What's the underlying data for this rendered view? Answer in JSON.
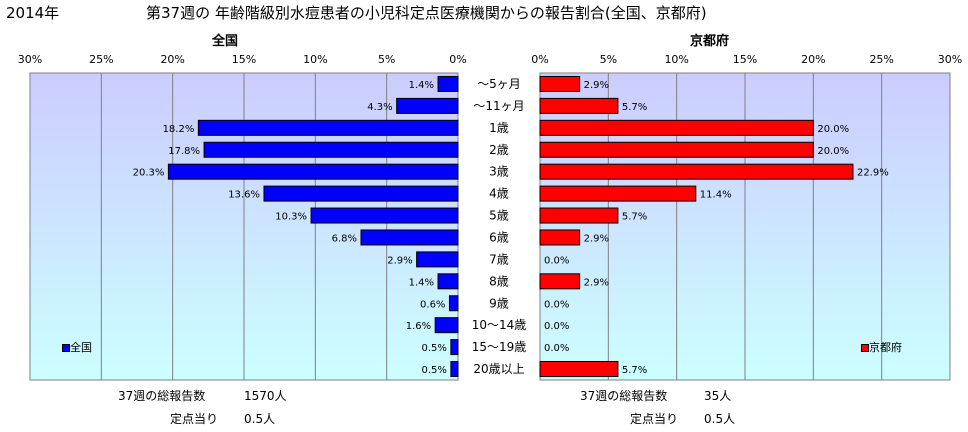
{
  "header": {
    "year": "2014年",
    "title": "第37週の 年齢階級別水痘患者の小児科定点医療機関からの報告割合(全国、京都府)"
  },
  "colors": {
    "left_bar": "#0000ff",
    "right_bar": "#ff0000",
    "plot_bg_top": "#ccccff",
    "plot_bg_bottom": "#ccffff"
  },
  "chart_data": [
    {
      "type": "bar",
      "orientation": "horizontal",
      "subtitle": "全国",
      "legend": "全国",
      "legend_position": "bottom-left",
      "xlim": [
        0,
        30
      ],
      "x_direction": "reversed",
      "ticks": [
        "30%",
        "25%",
        "20%",
        "15%",
        "10%",
        "5%",
        "0%"
      ],
      "categories": [
        "～5ヶ月",
        "～11ヶ月",
        "1歳",
        "2歳",
        "3歳",
        "4歳",
        "5歳",
        "6歳",
        "7歳",
        "8歳",
        "9歳",
        "10～14歳",
        "15～19歳",
        "20歳以上"
      ],
      "values": [
        1.4,
        4.3,
        18.2,
        17.8,
        20.3,
        13.6,
        10.3,
        6.8,
        2.9,
        1.4,
        0.6,
        1.6,
        0.5,
        0.5
      ],
      "labels": [
        "1.4%",
        "4.3%",
        "18.2%",
        "17.8%",
        "20.3%",
        "13.6%",
        "10.3%",
        "6.8%",
        "2.9%",
        "1.4%",
        "0.6%",
        "1.6%",
        "0.5%",
        "0.5%"
      ],
      "grid": true
    },
    {
      "type": "bar",
      "orientation": "horizontal",
      "subtitle": "京都府",
      "legend": "京都府",
      "legend_position": "bottom-right",
      "xlim": [
        0,
        30
      ],
      "ticks": [
        "0%",
        "5%",
        "10%",
        "15%",
        "20%",
        "25%",
        "30%"
      ],
      "categories": [
        "～5ヶ月",
        "～11ヶ月",
        "1歳",
        "2歳",
        "3歳",
        "4歳",
        "5歳",
        "6歳",
        "7歳",
        "8歳",
        "9歳",
        "10～14歳",
        "15～19歳",
        "20歳以上"
      ],
      "values": [
        2.9,
        5.7,
        20.0,
        20.0,
        22.9,
        11.4,
        5.7,
        2.9,
        0.0,
        2.9,
        0.0,
        0.0,
        0.0,
        5.7
      ],
      "labels": [
        "2.9%",
        "5.7%",
        "20.0%",
        "20.0%",
        "22.9%",
        "11.4%",
        "5.7%",
        "2.9%",
        "0.0%",
        "2.9%",
        "0.0%",
        "0.0%",
        "0.0%",
        "5.7%"
      ],
      "grid": true
    }
  ],
  "footer": {
    "left_label": "37週の総報告数",
    "left_total": "1570人",
    "left_per_label": "定点当り",
    "left_per": "0.5人",
    "right_label": "37週の総報告数",
    "right_total": "35人",
    "right_per_label": "定点当り",
    "right_per": "0.5人"
  }
}
